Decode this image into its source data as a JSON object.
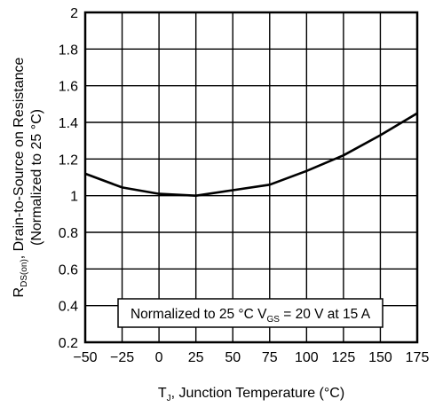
{
  "chart_data": {
    "type": "line",
    "xlabel": {
      "main": "T",
      "sub": "J",
      "rest": ", Junction Temperature (°C)"
    },
    "ylabel": {
      "line1_main": "R",
      "line1_sub": "DS(on)",
      "line1_rest": ", Drain-to-Source on Resistance",
      "line2": "(Normalized to 25 °C)"
    },
    "xlim": [
      -50,
      175
    ],
    "ylim": [
      0.2,
      2
    ],
    "xticks": [
      -50,
      -25,
      0,
      25,
      50,
      75,
      100,
      125,
      150,
      175
    ],
    "xtick_labels": [
      "−50",
      "−25",
      "0",
      "25",
      "50",
      "75",
      "100",
      "125",
      "150",
      "175"
    ],
    "yticks": [
      0.2,
      0.4,
      0.6,
      0.8,
      1,
      1.2,
      1.4,
      1.6,
      1.8,
      2
    ],
    "ytick_labels": [
      "0.2",
      "0.4",
      "0.6",
      "0.8",
      "1",
      "1.2",
      "1.4",
      "1.6",
      "1.8",
      "2"
    ],
    "grid": true,
    "annotation": {
      "a": "Normalized to 25 °C V",
      "sub": "GS",
      "b": " = 20 V at 15 A"
    },
    "series": [
      {
        "x": [
          -50,
          -25,
          0,
          25,
          50,
          75,
          100,
          125,
          150,
          175
        ],
        "y": [
          1.12,
          1.045,
          1.01,
          1.0,
          1.03,
          1.06,
          1.135,
          1.22,
          1.33,
          1.45
        ]
      }
    ],
    "line_color": "#000000"
  }
}
